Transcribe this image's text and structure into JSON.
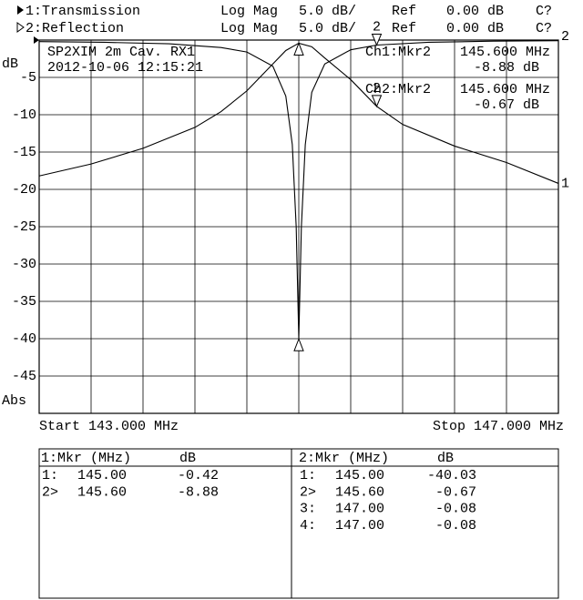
{
  "header": {
    "channels": [
      {
        "name": "1:Transmission",
        "format": "Log Mag",
        "scale": "5.0 dB/",
        "ref": "Ref",
        "ref_value": "0.00 dB",
        "cal": "C?"
      },
      {
        "name": "2:Reflection",
        "format": "Log Mag",
        "scale": "5.0 dB/",
        "ref": "Ref",
        "ref_value": "0.00 dB",
        "cal": "C?"
      }
    ]
  },
  "chart_data": {
    "type": "line",
    "y_label": "dB",
    "y_label_bottom": "Abs",
    "x_start_label": "Start 143.000 MHz",
    "x_stop_label": "Stop 147.000 MHz",
    "annotations": [
      "SP2XIM 2m Cav. RX1",
      "2012-10-06 12:15:21"
    ],
    "marker_readouts": [
      {
        "channel": "Ch1:Mkr2",
        "freq": "145.600 MHz",
        "value": "-8.88 dB"
      },
      {
        "channel": "Ch2:Mkr2",
        "freq": "145.600 MHz",
        "value": "-0.67 dB"
      }
    ],
    "xlim": [
      143.0,
      147.0
    ],
    "xticks": [
      143.4,
      143.8,
      144.2,
      144.6,
      145.0,
      145.4,
      145.8,
      146.2,
      146.6
    ],
    "xtick_labels": false,
    "ylim": [
      -50,
      0
    ],
    "yticks": [
      -45,
      -40,
      -35,
      -30,
      -25,
      -20,
      -15,
      -10,
      -5
    ],
    "grid": true,
    "series": [
      {
        "name": "1",
        "color": "#000000",
        "x": [
          143.0,
          143.4,
          143.8,
          144.2,
          144.4,
          144.6,
          144.8,
          144.9,
          145.0,
          145.1,
          145.2,
          145.4,
          145.6,
          145.8,
          146.2,
          146.6,
          147.0
        ],
        "values": [
          -18.2,
          -16.6,
          -14.5,
          -11.7,
          -9.6,
          -6.8,
          -3.2,
          -1.4,
          -0.42,
          -0.9,
          -2.4,
          -5.3,
          -8.88,
          -11.3,
          -14.2,
          -16.4,
          -19.2
        ],
        "markers": {
          "x": [
            145.0,
            145.6
          ],
          "values": [
            -0.42,
            -8.88
          ],
          "labels": [
            null,
            "2"
          ]
        }
      },
      {
        "name": "2",
        "color": "#000000",
        "x": [
          143.0,
          143.5,
          144.0,
          144.4,
          144.6,
          144.8,
          144.9,
          144.95,
          144.98,
          145.0,
          145.02,
          145.05,
          145.1,
          145.2,
          145.4,
          145.6,
          146.0,
          146.5,
          147.0
        ],
        "values": [
          -0.2,
          -0.3,
          -0.5,
          -1.0,
          -1.6,
          -3.5,
          -7.5,
          -14,
          -25,
          -40.03,
          -25,
          -14,
          -7,
          -3.2,
          -1.3,
          -0.67,
          -0.3,
          -0.15,
          -0.08
        ],
        "markers": {
          "x": [
            145.0,
            145.6
          ],
          "values": [
            -40.03,
            -0.67
          ],
          "labels": [
            null,
            "2"
          ]
        }
      }
    ]
  },
  "marker_tables": [
    {
      "header": [
        "1:Mkr (MHz)",
        "dB"
      ],
      "rows": [
        [
          "1:",
          "145.00",
          "-0.42"
        ],
        [
          "2>",
          "145.60",
          "-8.88"
        ]
      ]
    },
    {
      "header": [
        "2:Mkr (MHz)",
        "dB"
      ],
      "rows": [
        [
          "1:",
          "145.00",
          "-40.03"
        ],
        [
          "2>",
          "145.60",
          "-0.67"
        ],
        [
          "3:",
          "147.00",
          "-0.08"
        ],
        [
          "4:",
          "147.00",
          "-0.08"
        ]
      ]
    }
  ]
}
